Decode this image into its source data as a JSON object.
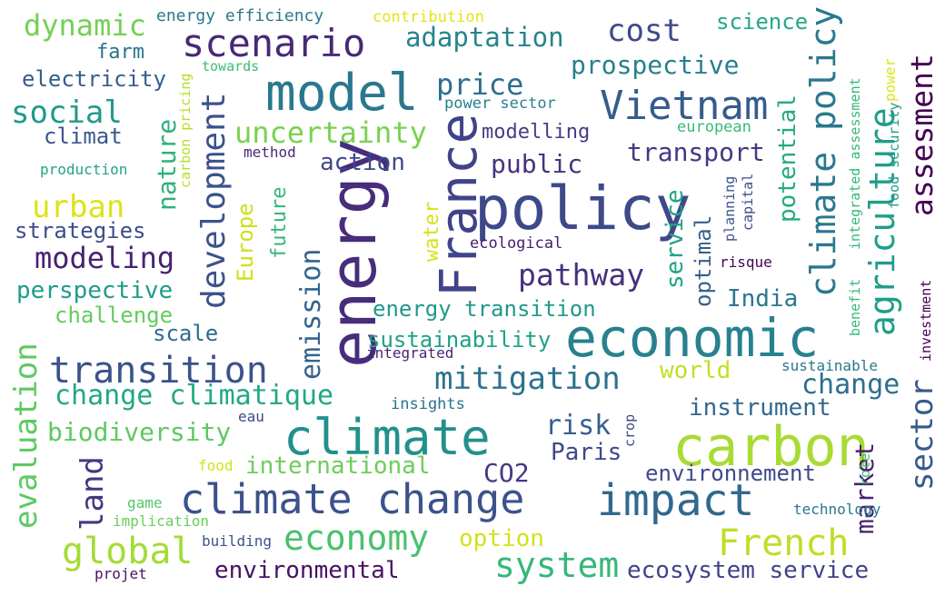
{
  "words": [
    {
      "text": "energy",
      "color": "#472d7b"
    },
    {
      "text": "policy",
      "color": "#3e4989"
    },
    {
      "text": "economic",
      "color": "#26828e"
    },
    {
      "text": "carbon",
      "color": "#a8db34"
    },
    {
      "text": "climate",
      "color": "#21918c"
    },
    {
      "text": "climate change",
      "color": "#3b528b"
    },
    {
      "text": "model",
      "color": "#2a788e"
    },
    {
      "text": "scenario",
      "color": "#482878"
    },
    {
      "text": "impact",
      "color": "#31688e"
    },
    {
      "text": "France",
      "color": "#404387"
    },
    {
      "text": "Vietnam",
      "color": "#365c8d"
    },
    {
      "text": "transition",
      "color": "#3b528b"
    },
    {
      "text": "economy",
      "color": "#4ac16d"
    },
    {
      "text": "global",
      "color": "#a5db36"
    },
    {
      "text": "French",
      "color": "#bddf26"
    },
    {
      "text": "system",
      "color": "#35b779"
    },
    {
      "text": "mitigation",
      "color": "#2c728e"
    },
    {
      "text": "climate policy",
      "color": "#2a788e"
    },
    {
      "text": "agriculture",
      "color": "#1f9e89"
    },
    {
      "text": "development",
      "color": "#3b528b"
    },
    {
      "text": "evaluation",
      "color": "#5ec962"
    },
    {
      "text": "emission",
      "color": "#33638d"
    },
    {
      "text": "uncertainty",
      "color": "#7ad151"
    },
    {
      "text": "change climatique",
      "color": "#22a884"
    },
    {
      "text": "pathway",
      "color": "#46307e"
    },
    {
      "text": "sector",
      "color": "#38598c"
    },
    {
      "text": "assesment",
      "color": "#440154"
    },
    {
      "text": "cost",
      "color": "#3e4a89"
    },
    {
      "text": "social",
      "color": "#1f9a8a"
    },
    {
      "text": "urban",
      "color": "#dde318"
    },
    {
      "text": "modeling",
      "color": "#482173"
    },
    {
      "text": "land",
      "color": "#453781"
    },
    {
      "text": "adaptation",
      "color": "#25858e"
    },
    {
      "text": "prospective",
      "color": "#277f8e"
    },
    {
      "text": "dynamic",
      "color": "#73d056"
    },
    {
      "text": "price",
      "color": "#2e6e8e"
    },
    {
      "text": "biodiversity",
      "color": "#5ec962"
    },
    {
      "text": "international",
      "color": "#6ccd5a"
    },
    {
      "text": "environmental",
      "color": "#471164"
    },
    {
      "text": "ecosystem service",
      "color": "#414487"
    },
    {
      "text": "market",
      "color": "#481f70"
    },
    {
      "text": "option",
      "color": "#d2e21b"
    },
    {
      "text": "change",
      "color": "#2e6e8e"
    },
    {
      "text": "risk",
      "color": "#355f8d"
    },
    {
      "text": "CO2",
      "color": "#443983"
    },
    {
      "text": "Paris",
      "color": "#3f4788"
    },
    {
      "text": "public",
      "color": "#46337e"
    },
    {
      "text": "transport",
      "color": "#453882"
    },
    {
      "text": "action",
      "color": "#3e4989"
    },
    {
      "text": "nature",
      "color": "#2db27d"
    },
    {
      "text": "potential",
      "color": "#24aa83"
    },
    {
      "text": "energy transition",
      "color": "#1f998a"
    },
    {
      "text": "sustainability",
      "color": "#1fa187"
    },
    {
      "text": "world",
      "color": "#c2df23"
    },
    {
      "text": "instrument",
      "color": "#31688e"
    },
    {
      "text": "environnement",
      "color": "#3f4889"
    },
    {
      "text": "India",
      "color": "#2a778e"
    },
    {
      "text": "optimal",
      "color": "#355f8d"
    },
    {
      "text": "service",
      "color": "#20a386"
    },
    {
      "text": "Europe",
      "color": "#cde11d"
    },
    {
      "text": "future",
      "color": "#35b779"
    },
    {
      "text": "perspective",
      "color": "#1e9c89"
    },
    {
      "text": "challenge",
      "color": "#65cb5e"
    },
    {
      "text": "scale",
      "color": "#2f6c8e"
    },
    {
      "text": "strategies",
      "color": "#3d4e8a"
    },
    {
      "text": "electricity",
      "color": "#355e8d"
    },
    {
      "text": "climat",
      "color": "#38598c"
    },
    {
      "text": "farm",
      "color": "#2d718e"
    },
    {
      "text": "science",
      "color": "#22a884"
    },
    {
      "text": "energy efficiency",
      "color": "#2a788e"
    },
    {
      "text": "water",
      "color": "#d8e219"
    },
    {
      "text": "modelling",
      "color": "#433e85"
    },
    {
      "text": "power sector",
      "color": "#27808e"
    },
    {
      "text": "ecological",
      "color": "#481b6d"
    },
    {
      "text": "european",
      "color": "#38b977"
    },
    {
      "text": "insights",
      "color": "#2c728e"
    },
    {
      "text": "integrated",
      "color": "#482475"
    },
    {
      "text": "sustainable",
      "color": "#2a788e"
    },
    {
      "text": "production",
      "color": "#20a486"
    },
    {
      "text": "contribution",
      "color": "#e2e418"
    },
    {
      "text": "towards",
      "color": "#3bbb75"
    },
    {
      "text": "method",
      "color": "#482878"
    },
    {
      "text": "carbon pricing",
      "color": "#b5de2b"
    },
    {
      "text": "planning",
      "color": "#3b528b"
    },
    {
      "text": "capital",
      "color": "#3e4a89"
    },
    {
      "text": "risque",
      "color": "#440154"
    },
    {
      "text": "integrated assessment",
      "color": "#35b779"
    },
    {
      "text": "food security",
      "color": "#1f9e89"
    },
    {
      "text": "power",
      "color": "#dde318"
    },
    {
      "text": "investment",
      "color": "#440154"
    },
    {
      "text": "benefit",
      "color": "#38b977"
    },
    {
      "text": "crop",
      "color": "#404588"
    },
    {
      "text": "role",
      "color": "#3dbc74"
    },
    {
      "text": "technology",
      "color": "#2a788e"
    },
    {
      "text": "eau",
      "color": "#3e4989"
    },
    {
      "text": "food",
      "color": "#d5e21a"
    },
    {
      "text": "game",
      "color": "#56c667"
    },
    {
      "text": "implication",
      "color": "#6ccd5a"
    },
    {
      "text": "building",
      "color": "#3b528b"
    },
    {
      "text": "projet",
      "color": "#481467"
    }
  ]
}
